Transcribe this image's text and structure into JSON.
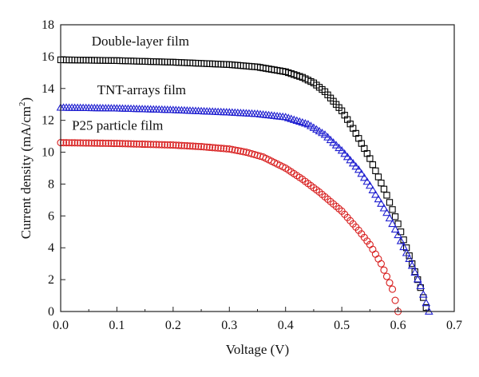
{
  "chart_data": {
    "type": "scatter",
    "title": "",
    "xlabel": "Voltage (V)",
    "ylabel": "Current density (mA/cm",
    "ylabel_sup": "2",
    "ylabel_close": ")",
    "xlim": [
      0,
      0.7
    ],
    "ylim": [
      0,
      18
    ],
    "x_ticks": [
      "0.0",
      "0.1",
      "0.2",
      "0.3",
      "0.4",
      "0.5",
      "0.6",
      "0.7"
    ],
    "y_ticks": [
      "0",
      "2",
      "4",
      "6",
      "8",
      "10",
      "12",
      "14",
      "16",
      "18"
    ],
    "grid": false,
    "series": [
      {
        "name": "Double-layer film",
        "marker": "square",
        "color": "#000000",
        "jsc": 15.8,
        "voc": 0.652,
        "points": [
          [
            0.0,
            15.8
          ],
          [
            0.1,
            15.75
          ],
          [
            0.2,
            15.65
          ],
          [
            0.3,
            15.5
          ],
          [
            0.35,
            15.35
          ],
          [
            0.4,
            15.05
          ],
          [
            0.43,
            14.7
          ],
          [
            0.45,
            14.35
          ],
          [
            0.47,
            13.8
          ],
          [
            0.5,
            12.6
          ],
          [
            0.52,
            11.5
          ],
          [
            0.55,
            9.6
          ],
          [
            0.58,
            7.3
          ],
          [
            0.6,
            5.5
          ],
          [
            0.62,
            3.5
          ],
          [
            0.64,
            1.5
          ],
          [
            0.652,
            0.0
          ]
        ]
      },
      {
        "name": "TNT-arrays film",
        "marker": "triangle",
        "color": "#1f1fd0",
        "jsc": 12.8,
        "voc": 0.655,
        "points": [
          [
            0.0,
            12.8
          ],
          [
            0.1,
            12.75
          ],
          [
            0.2,
            12.65
          ],
          [
            0.3,
            12.5
          ],
          [
            0.35,
            12.4
          ],
          [
            0.4,
            12.2
          ],
          [
            0.44,
            11.75
          ],
          [
            0.47,
            11.1
          ],
          [
            0.5,
            10.1
          ],
          [
            0.53,
            8.9
          ],
          [
            0.55,
            7.9
          ],
          [
            0.58,
            6.2
          ],
          [
            0.6,
            4.8
          ],
          [
            0.62,
            3.3
          ],
          [
            0.64,
            1.6
          ],
          [
            0.655,
            0.0
          ]
        ]
      },
      {
        "name": "P25 particle film",
        "marker": "circle",
        "color": "#d81f1f",
        "jsc": 10.6,
        "voc": 0.6,
        "points": [
          [
            0.0,
            10.6
          ],
          [
            0.1,
            10.55
          ],
          [
            0.2,
            10.45
          ],
          [
            0.25,
            10.35
          ],
          [
            0.3,
            10.2
          ],
          [
            0.33,
            10.0
          ],
          [
            0.36,
            9.7
          ],
          [
            0.4,
            9.0
          ],
          [
            0.43,
            8.3
          ],
          [
            0.46,
            7.5
          ],
          [
            0.5,
            6.3
          ],
          [
            0.53,
            5.1
          ],
          [
            0.55,
            4.2
          ],
          [
            0.57,
            3.0
          ],
          [
            0.59,
            1.4
          ],
          [
            0.6,
            0.0
          ]
        ]
      }
    ]
  }
}
